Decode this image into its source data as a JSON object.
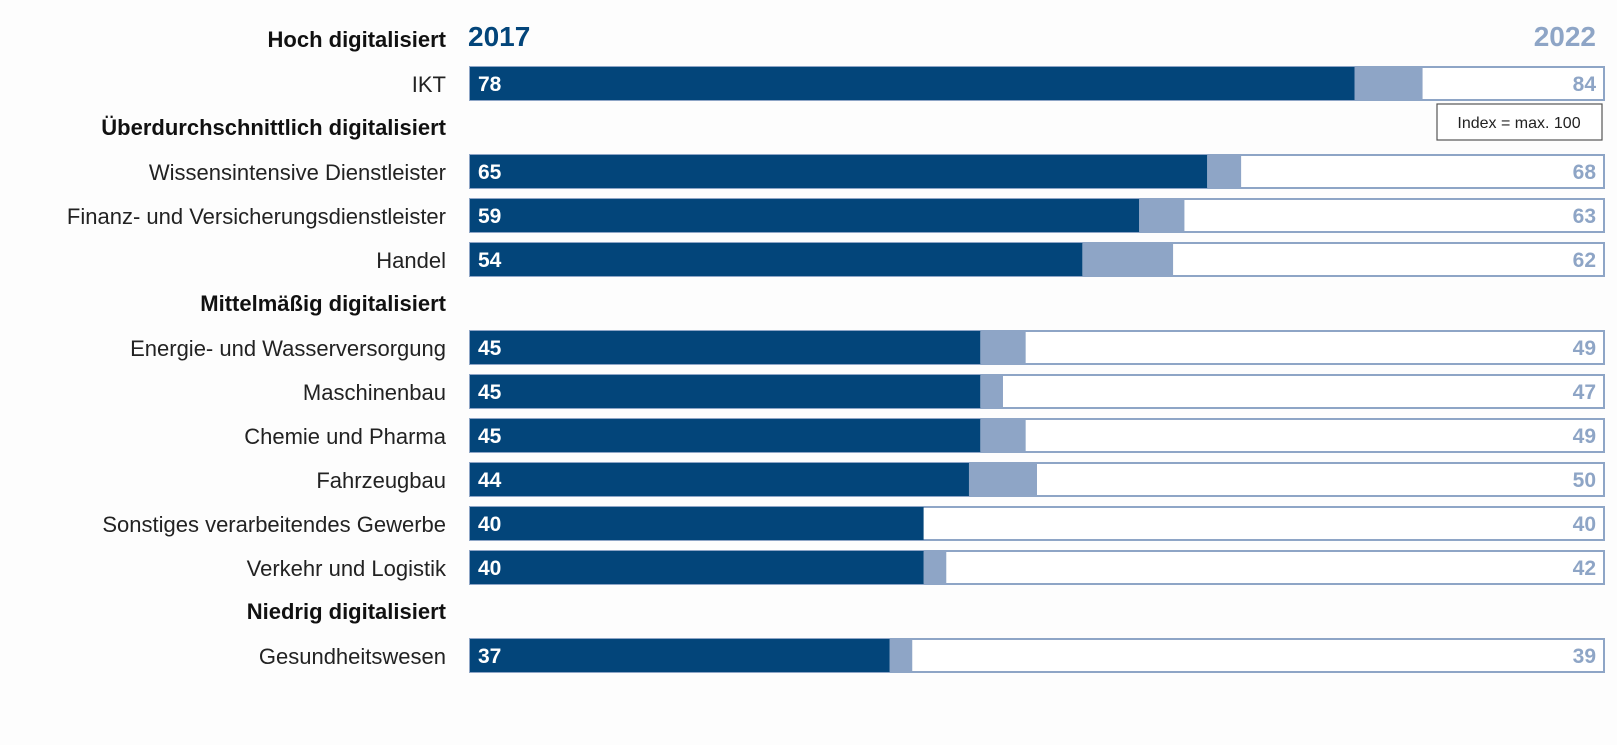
{
  "chart_data": {
    "type": "bar",
    "orientation": "horizontal",
    "series": [
      {
        "name": "2017",
        "values": [
          78,
          65,
          59,
          54,
          45,
          45,
          45,
          44,
          40,
          40,
          37
        ]
      },
      {
        "name": "2022",
        "values": [
          84,
          68,
          63,
          62,
          49,
          47,
          49,
          50,
          40,
          42,
          39
        ]
      }
    ],
    "categories": [
      "IKT",
      "Wissensintensive Dienstleister",
      "Finanz- und Versicherungsdienstleister",
      "Handel",
      "Energie- und Wasserversorgung",
      "Maschinenbau",
      "Chemie und Pharma",
      "Fahrzeugbau",
      "Sonstiges verarbeitendes Gewerbe",
      "Verkehr und Logistik",
      "Gesundheitswesen"
    ],
    "groups": [
      {
        "label": "Hoch digitalisiert",
        "categories": [
          "IKT"
        ]
      },
      {
        "label": "Überdurchschnittlich digitalisiert",
        "categories": [
          "Wissensintensive Dienstleister",
          "Finanz- und Versicherungsdienstleister",
          "Handel"
        ]
      },
      {
        "label": "Mittelmäßig digitalisiert",
        "categories": [
          "Energie- und Wasserversorgung",
          "Maschinenbau",
          "Chemie und Pharma",
          "Fahrzeugbau",
          "Sonstiges verarbeitendes Gewerbe",
          "Verkehr und Logistik"
        ]
      },
      {
        "label": "Niedrig digitalisiert",
        "categories": [
          "Gesundheitswesen"
        ]
      }
    ],
    "annotation": "Index = max. 100",
    "xlim": [
      0,
      100
    ],
    "grid": false,
    "colors": {
      "2017": "#03457a",
      "2022": "#8ea5c6",
      "frame": "#8ea5c6"
    }
  }
}
